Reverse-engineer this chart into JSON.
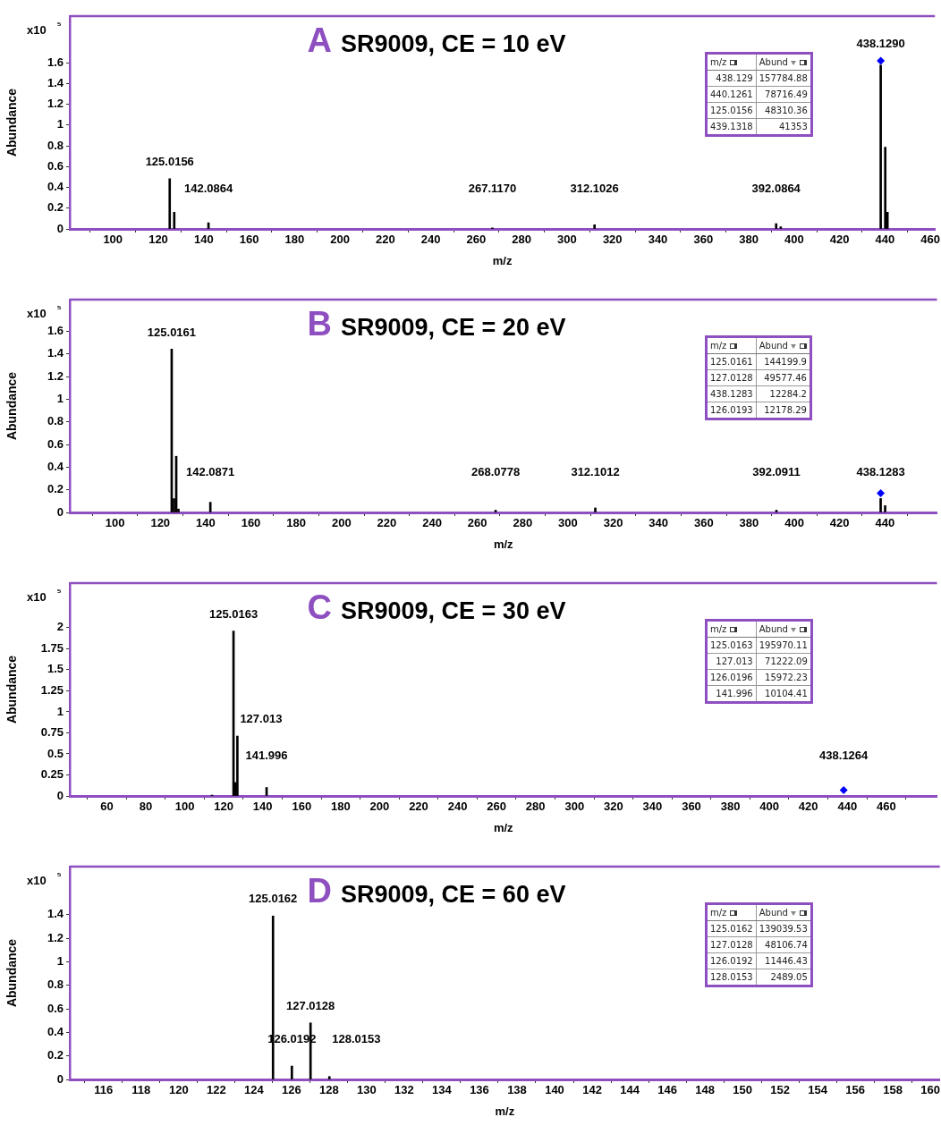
{
  "chart_data": [
    {
      "type": "bar",
      "title": "A",
      "subtitle": "SR9009, CE = 10 eV",
      "xlabel": "m/z",
      "ylabel": "Abundance",
      "grid": false,
      "legend": false,
      "series": [
        {
          "color": "#000000",
          "x": [
            125.0156,
            127.01,
            142.0864,
            267.117,
            312.1026,
            392.0864,
            394.1,
            438.129,
            440.1261,
            441.1
          ],
          "values": [
            0.483,
            0.16,
            0.06,
            0.01,
            0.04,
            0.05,
            0.02,
            1.578,
            0.787,
            0.16
          ]
        },
        {
          "type": "scatter",
          "color": "#0000ff",
          "marker": "diamond",
          "x": [
            438.129
          ],
          "values": [
            1.62
          ]
        }
      ],
      "xlim": [
        81,
        462
      ],
      "xticks": [
        100,
        120,
        140,
        160,
        180,
        200,
        220,
        240,
        260,
        280,
        300,
        320,
        340,
        360,
        380,
        400,
        420,
        440,
        460
      ],
      "ylim": [
        0,
        2.05
      ],
      "yticks": [
        0,
        0.2,
        0.4,
        0.6,
        0.8,
        1,
        1.2,
        1.4,
        1.6
      ],
      "annotations": [
        "x10 ⁵",
        "m/z",
        "Abund",
        "438.129",
        "157784.88",
        "440.1261",
        "78716.49",
        "125.0156",
        "48310.36",
        "439.1318",
        "41353",
        {
          "text": "125.0156",
          "x": 125.0156,
          "y": 0.483
        },
        {
          "text": "142.0864",
          "x": 142.0864,
          "y": 0.06
        },
        {
          "text": "267.1170",
          "x": 267.117,
          "y": 0.01
        },
        {
          "text": "312.1026",
          "x": 312.1026,
          "y": 0.04
        },
        {
          "text": "392.0864",
          "x": 392.0864,
          "y": 0.05
        },
        {
          "text": "438.1290",
          "x": 438.129,
          "y": 1.62
        }
      ]
    },
    {
      "type": "bar",
      "title": "B",
      "subtitle": "SR9009, CE = 20 eV",
      "xlabel": "m/z",
      "ylabel": "Abundance",
      "grid": false,
      "legend": false,
      "series": [
        {
          "color": "#000000",
          "x": [
            125.0161,
            126.0193,
            127.0128,
            128.0,
            142.0871,
            268.0778,
            312.1012,
            392.0911,
            438.1283,
            440.1
          ],
          "values": [
            1.442,
            0.122,
            0.496,
            0.03,
            0.09,
            0.02,
            0.04,
            0.02,
            0.123,
            0.06
          ]
        },
        {
          "type": "scatter",
          "color": "#0000ff",
          "marker": "diamond",
          "x": [
            438.1283
          ],
          "values": [
            0.17
          ]
        }
      ],
      "xlim": [
        80,
        463
      ],
      "xticks": [
        100,
        120,
        140,
        160,
        180,
        200,
        220,
        240,
        260,
        280,
        300,
        320,
        340,
        360,
        380,
        400,
        420,
        440
      ],
      "ylim": [
        0,
        1.88
      ],
      "yticks": [
        0,
        0.2,
        0.4,
        0.6,
        0.8,
        1,
        1.2,
        1.4,
        1.6
      ],
      "annotations": [
        "x10 ⁵",
        "m/z",
        "Abund",
        "125.0161",
        "144199.9",
        "127.0128",
        "49577.46",
        "438.1283",
        "12284.2",
        "126.0193",
        "12178.29",
        {
          "text": "125.0161",
          "x": 125.0161,
          "y": 1.442
        },
        {
          "text": "142.0871",
          "x": 142.0871,
          "y": 0.09
        },
        {
          "text": "268.0778",
          "x": 268.0778,
          "y": 0.02
        },
        {
          "text": "312.1012",
          "x": 312.1012,
          "y": 0.04
        },
        {
          "text": "392.0911",
          "x": 392.0911,
          "y": 0.02
        },
        {
          "text": "438.1283",
          "x": 438.1283,
          "y": 0.17
        }
      ]
    },
    {
      "type": "bar",
      "title": "C",
      "subtitle": "SR9009, CE = 30 eV",
      "xlabel": "m/z",
      "ylabel": "Abundance",
      "grid": false,
      "legend": false,
      "series": [
        {
          "color": "#000000",
          "x": [
            114.0,
            125.0163,
            126.0196,
            127.013,
            141.996
          ],
          "values": [
            0.01,
            1.96,
            0.16,
            0.712,
            0.101
          ]
        },
        {
          "type": "scatter",
          "color": "#0000ff",
          "marker": "diamond",
          "x": [
            438.1264
          ],
          "values": [
            0.07
          ]
        }
      ],
      "xlim": [
        41,
        486
      ],
      "xticks": [
        60,
        80,
        100,
        120,
        140,
        160,
        180,
        200,
        220,
        240,
        260,
        280,
        300,
        320,
        340,
        360,
        380,
        400,
        420,
        440,
        460
      ],
      "ylim": [
        0,
        2.53
      ],
      "yticks": [
        0,
        0.25,
        0.5,
        0.75,
        1,
        1.25,
        1.5,
        1.75,
        2
      ],
      "annotations": [
        "x10 ⁵",
        "m/z",
        "Abund",
        "125.0163",
        "195970.11",
        "127.013",
        "71222.09",
        "126.0196",
        "15972.23",
        "141.996",
        "10104.41",
        {
          "text": "125.0163",
          "x": 125.0163,
          "y": 1.96
        },
        {
          "text": "127.013",
          "x": 127.013,
          "y": 0.712
        },
        {
          "text": "141.996",
          "x": 141.996,
          "y": 0.101
        },
        {
          "text": "438.1264",
          "x": 438.1264,
          "y": 0.07
        }
      ]
    },
    {
      "type": "bar",
      "title": "D",
      "subtitle": "SR9009, CE = 60 eV",
      "xlabel": "m/z",
      "ylabel": "Abundance",
      "grid": false,
      "legend": false,
      "series": [
        {
          "color": "#000000",
          "x": [
            125.0162,
            126.0192,
            127.0128,
            128.0153
          ],
          "values": [
            1.39,
            0.114,
            0.481,
            0.025
          ]
        }
      ],
      "xlim": [
        114.2,
        160.5
      ],
      "xticks": [
        116,
        118,
        120,
        122,
        124,
        126,
        128,
        130,
        132,
        134,
        136,
        138,
        140,
        142,
        144,
        146,
        148,
        150,
        152,
        154,
        156,
        158,
        160
      ],
      "ylim": [
        0,
        1.81
      ],
      "yticks": [
        0,
        0.2,
        0.4,
        0.6,
        0.8,
        1,
        1.2,
        1.4
      ],
      "annotations": [
        "x10 ⁵",
        "m/z",
        "Abund",
        "125.0162",
        "139039.53",
        "127.0128",
        "48106.74",
        "126.0192",
        "11446.43",
        "128.0153",
        "2489.05",
        {
          "text": "125.0162",
          "x": 125.0162,
          "y": 1.39
        },
        {
          "text": "127.0128",
          "x": 127.0128,
          "y": 0.481
        },
        {
          "text": "126.0192",
          "x": 126.0192,
          "y": 0.114
        },
        {
          "text": "128.0153",
          "x": 128.0153,
          "y": 0.025
        }
      ]
    }
  ]
}
